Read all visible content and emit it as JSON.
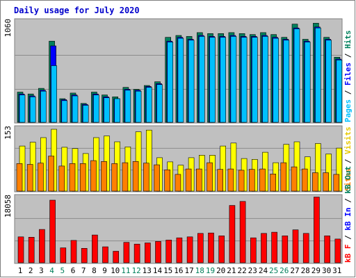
{
  "title": "Daily usage for July 2020",
  "colors": {
    "title": "#0000cc",
    "background": "#c0c0c0",
    "frame": "#7f7f7f",
    "hits": "#00805c",
    "files": "#0000ff",
    "pages": "#00c0ff",
    "visits": "#ffff00",
    "sites": "#ff8000",
    "kb_in": "#0000ff",
    "kb_out": "#00805c",
    "kb_f": "#ff0000",
    "weekend_label": "#00805c",
    "weekday_label": "#000000"
  },
  "chart_data": [
    {
      "type": "bar",
      "panel": "top",
      "ymax_label": "1060",
      "ymax": 1060,
      "categories": [
        "1",
        "2",
        "3",
        "4",
        "5",
        "6",
        "7",
        "8",
        "9",
        "10",
        "11",
        "12",
        "13",
        "14",
        "15",
        "16",
        "17",
        "18",
        "19",
        "20",
        "21",
        "22",
        "23",
        "24",
        "25",
        "26",
        "27",
        "28",
        "29",
        "30",
        "31"
      ],
      "weekend_days": [
        "4",
        "5",
        "11",
        "12",
        "18",
        "19",
        "25",
        "26"
      ],
      "legend": [
        "Hits",
        "Files",
        "Pages"
      ],
      "series": [
        {
          "name": "Hits",
          "values": [
            320,
            300,
            360,
            860,
            250,
            310,
            200,
            320,
            290,
            270,
            370,
            350,
            390,
            430,
            900,
            920,
            910,
            950,
            940,
            940,
            950,
            940,
            930,
            950,
            930,
            900,
            1040,
            880,
            1050,
            900,
            690
          ]
        },
        {
          "name": "Files",
          "values": [
            300,
            280,
            340,
            810,
            240,
            290,
            190,
            300,
            270,
            250,
            350,
            340,
            380,
            410,
            860,
            900,
            880,
            920,
            910,
            910,
            920,
            910,
            910,
            920,
            900,
            880,
            1000,
            860,
            1010,
            880,
            670
          ]
        },
        {
          "name": "Pages",
          "values": [
            290,
            270,
            330,
            600,
            230,
            280,
            180,
            290,
            260,
            250,
            340,
            330,
            370,
            400,
            850,
            890,
            870,
            910,
            900,
            900,
            910,
            900,
            900,
            910,
            890,
            870,
            990,
            850,
            1000,
            870,
            660
          ]
        }
      ]
    },
    {
      "type": "bar",
      "panel": "middle",
      "ymax_label": "153",
      "ymax": 153,
      "legend": [
        "Visits",
        "Sites"
      ],
      "series": [
        {
          "name": "Visits",
          "values": [
            108,
            117,
            128,
            148,
            105,
            102,
            90,
            128,
            132,
            118,
            106,
            142,
            146,
            80,
            70,
            62,
            80,
            86,
            86,
            108,
            115,
            78,
            76,
            93,
            68,
            112,
            118,
            82,
            114,
            89,
            103
          ]
        },
        {
          "name": "Sites",
          "values": [
            66,
            64,
            67,
            84,
            60,
            66,
            66,
            73,
            71,
            66,
            68,
            71,
            67,
            63,
            51,
            40,
            53,
            53,
            68,
            52,
            53,
            50,
            52,
            53,
            41,
            68,
            58,
            53,
            44,
            44,
            40
          ]
        }
      ]
    },
    {
      "type": "bar",
      "panel": "bottom",
      "ymax_label": "18058",
      "ymax": 18058,
      "legend": [
        "kB F",
        "kB In",
        "kB Out"
      ],
      "series": [
        {
          "name": "kB F",
          "values": [
            7080,
            6980,
            9100,
            17100,
            4060,
            6100,
            3930,
            7580,
            4360,
            3140,
            5560,
            5100,
            5410,
            5810,
            6200,
            6810,
            7080,
            8020,
            8130,
            7360,
            15670,
            16760,
            6810,
            8020,
            8340,
            7360,
            9000,
            8020,
            17960,
            7360,
            6490
          ]
        }
      ]
    }
  ],
  "x_labels": [
    "1",
    "2",
    "3",
    "4",
    "5",
    "6",
    "7",
    "8",
    "9",
    "10",
    "11",
    "12",
    "13",
    "14",
    "15",
    "16",
    "17",
    "18",
    "19",
    "20",
    "21",
    "22",
    "23",
    "24",
    "25",
    "26",
    "27",
    "28",
    "29",
    "30",
    "31"
  ]
}
